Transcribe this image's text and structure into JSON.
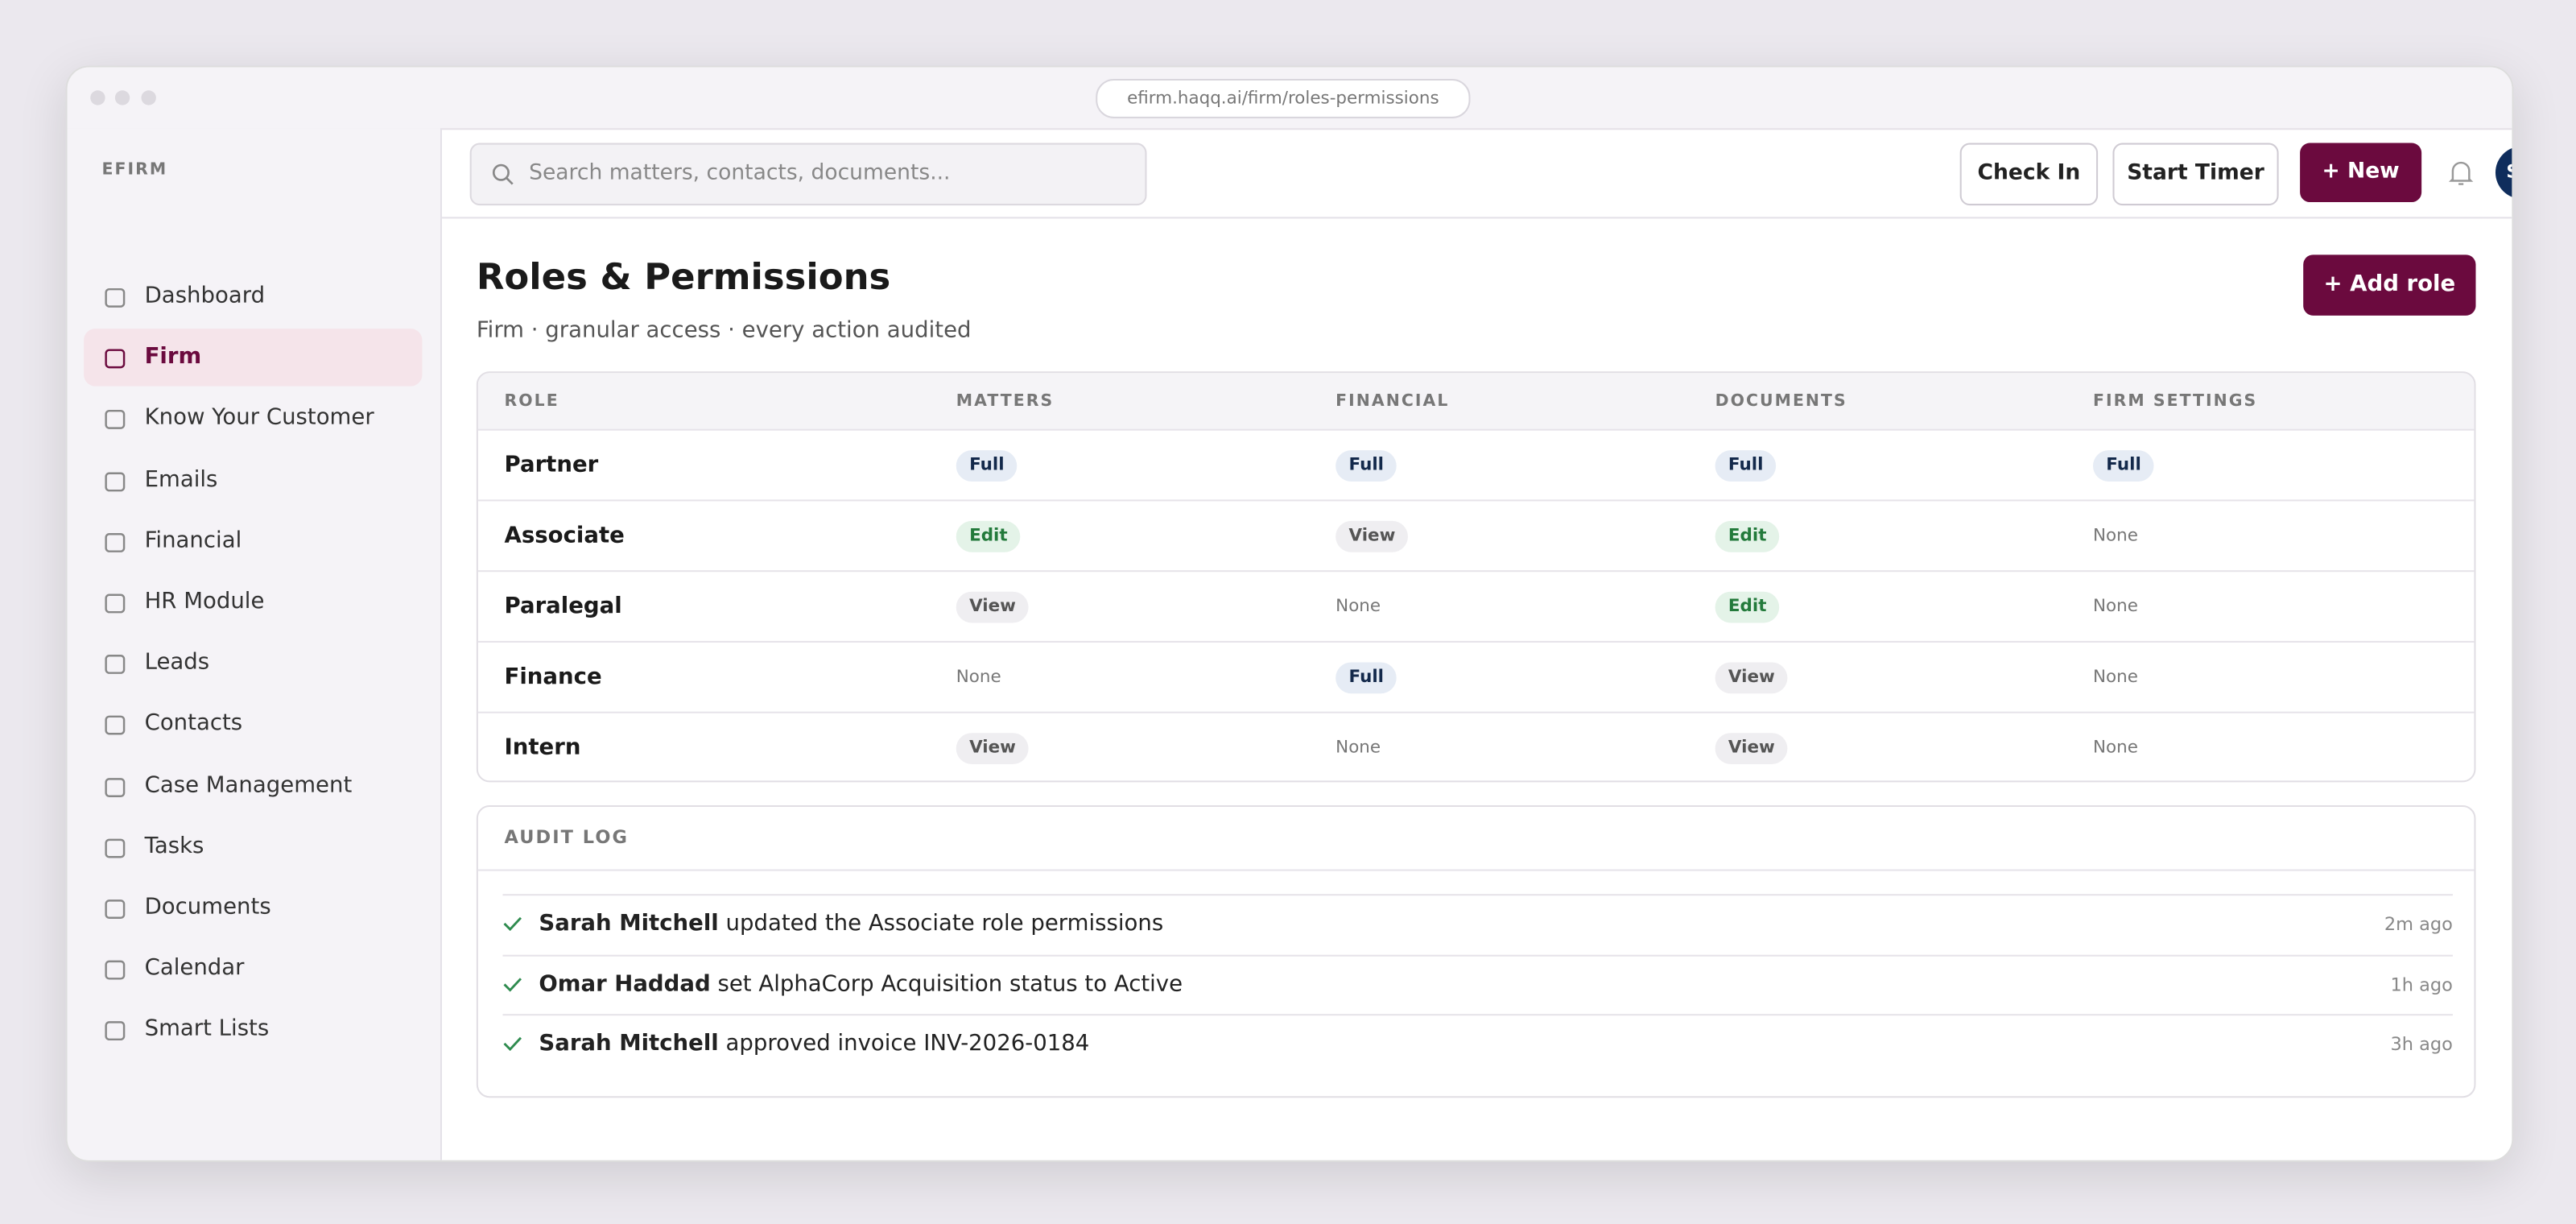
{
  "browser": {
    "url": "efirm.haqq.ai/firm/roles-permissions"
  },
  "sidebar": {
    "brand": "EFIRM",
    "active": 1,
    "items": [
      "Dashboard",
      "Firm",
      "Know Your Customer",
      "Emails",
      "Financial",
      "HR Module",
      "Leads",
      "Contacts",
      "Case Management",
      "Tasks",
      "Documents",
      "Calendar",
      "Smart Lists"
    ]
  },
  "header": {
    "search_placeholder": "Search matters, contacts, documents...",
    "buttons": [
      "Check In",
      "Start Timer",
      "New"
    ],
    "avatar": "SM"
  },
  "page": {
    "title": "Roles & Permissions",
    "subtitle": "Firm · granular access · every action audited",
    "add_button": "Add role"
  },
  "table": {
    "columns": [
      "ROLE",
      "MATTERS",
      "FINANCIAL",
      "DOCUMENTS",
      "FIRM SETTINGS"
    ],
    "rows": [
      [
        "Partner",
        "Full",
        "Full",
        "Full",
        "Full"
      ],
      [
        "Associate",
        "Edit",
        "View",
        "Edit",
        "None"
      ],
      [
        "Paralegal",
        "View",
        "None",
        "Edit",
        "None"
      ],
      [
        "Finance",
        "None",
        "Full",
        "View",
        "None"
      ],
      [
        "Intern",
        "View",
        "None",
        "View",
        "None"
      ]
    ]
  },
  "audit_log": {
    "title": "AUDIT LOG",
    "entries": [
      {
        "actor": "Sarah Mitchell",
        "action": "updated the Associate role permissions",
        "time": "2m ago"
      },
      {
        "actor": "Omar Haddad",
        "action": "set AlphaCorp Acquisition status to Active",
        "time": "1h ago"
      },
      {
        "actor": "Sarah Mitchell",
        "action": "approved invoice INV-2026-0184",
        "time": "3h ago"
      }
    ]
  }
}
